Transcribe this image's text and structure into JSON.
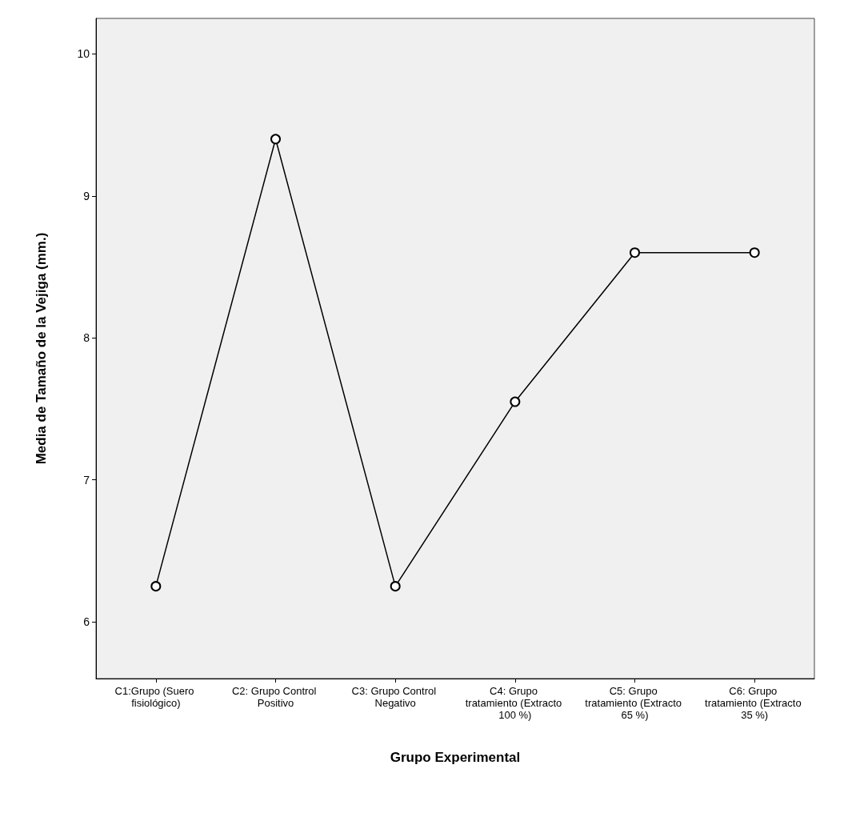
{
  "chart_data": {
    "type": "line",
    "xlabel": "Grupo Experimental",
    "ylabel": "Media de Tamaño de la Vejiga (mm.)",
    "categories": [
      "C1:Grupo (Suero fisiológico)",
      "C2: Grupo Control Positivo",
      "C3: Grupo Control Negativo",
      "C4: Grupo tratamiento (Extracto 100 %)",
      "C5: Grupo tratamiento (Extracto 65 %)",
      "C6: Grupo tratamiento (Extracto 35 %)"
    ],
    "values": [
      6.25,
      9.4,
      6.25,
      7.55,
      8.6,
      8.6
    ],
    "color": "#000000",
    "ylim": [
      5.6,
      10.25
    ],
    "yticks": [
      6,
      7,
      8,
      9,
      10
    ],
    "grid": false,
    "marker": "circle",
    "line_style": "solid"
  }
}
